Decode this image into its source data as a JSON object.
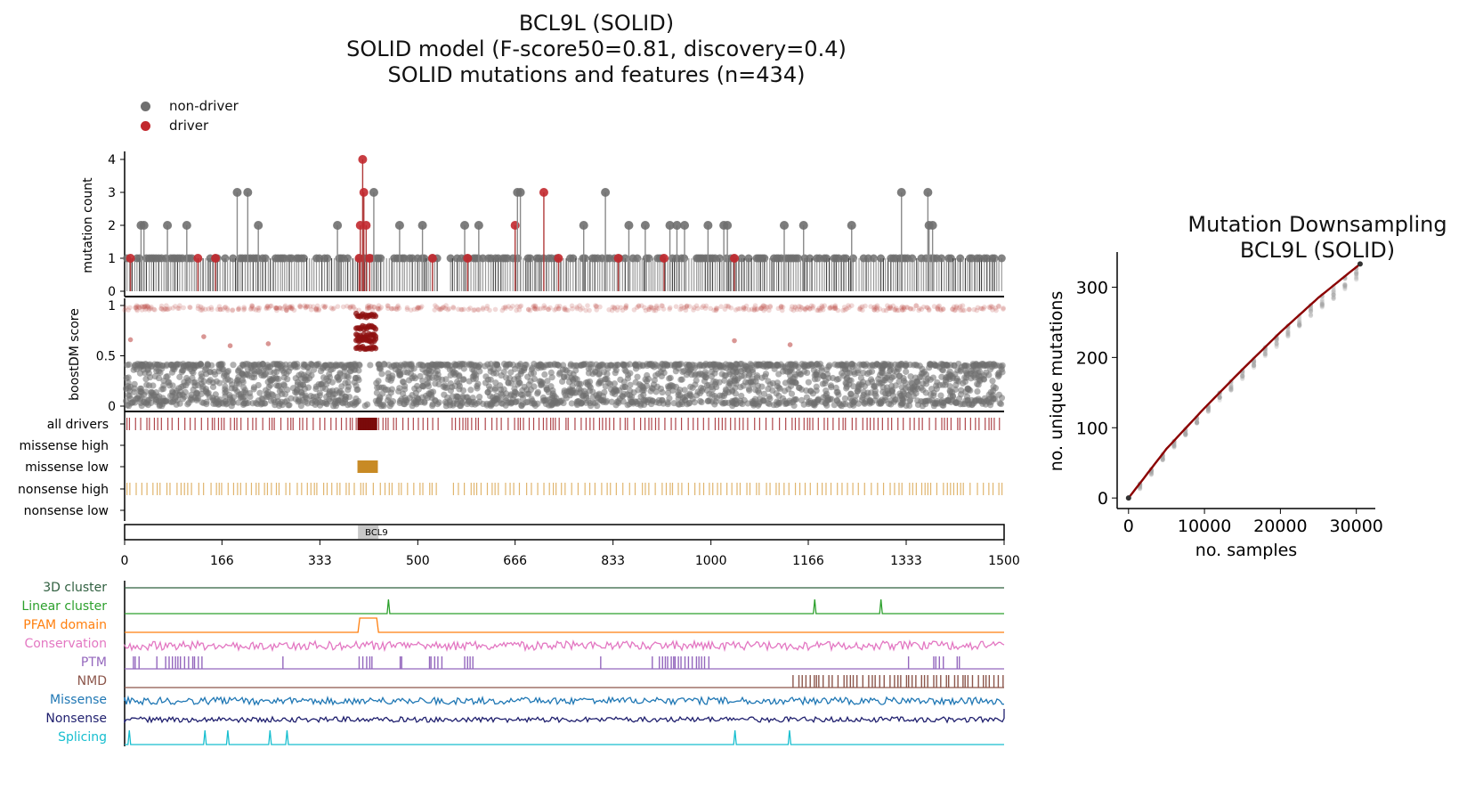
{
  "header": {
    "title_line1": "BCL9L (SOLID)",
    "title_line2": "SOLID model (F-score50=0.81, discovery=0.4)",
    "title_line3": "SOLID mutations and features (n=434)"
  },
  "legend": {
    "items": [
      {
        "label": "non-driver",
        "color": "#6f6f6f"
      },
      {
        "label": "driver",
        "color": "#c2282d"
      }
    ]
  },
  "chart_data": [
    {
      "type": "scatter",
      "name": "lollipop",
      "ylabel": "mutation count",
      "ylim": [
        0,
        4
      ],
      "yticks": [
        "0",
        "1",
        "2",
        "3",
        "4"
      ],
      "xlim": [
        0,
        1500
      ],
      "baseline_count": 1,
      "stems": [
        {
          "x": 10,
          "count": 1,
          "driver": true
        },
        {
          "x": 28,
          "count": 2,
          "driver": false
        },
        {
          "x": 33,
          "count": 2,
          "driver": false
        },
        {
          "x": 73,
          "count": 2,
          "driver": false
        },
        {
          "x": 106,
          "count": 2,
          "driver": false
        },
        {
          "x": 125,
          "count": 1,
          "driver": true
        },
        {
          "x": 155,
          "count": 1,
          "driver": true
        },
        {
          "x": 192,
          "count": 3,
          "driver": false
        },
        {
          "x": 210,
          "count": 3,
          "driver": false
        },
        {
          "x": 228,
          "count": 2,
          "driver": false
        },
        {
          "x": 363,
          "count": 2,
          "driver": false
        },
        {
          "x": 400,
          "count": 1,
          "driver": true
        },
        {
          "x": 402,
          "count": 2,
          "driver": true
        },
        {
          "x": 406,
          "count": 4,
          "driver": true
        },
        {
          "x": 408,
          "count": 3,
          "driver": true
        },
        {
          "x": 412,
          "count": 2,
          "driver": true
        },
        {
          "x": 418,
          "count": 1,
          "driver": true
        },
        {
          "x": 425,
          "count": 3,
          "driver": false
        },
        {
          "x": 469,
          "count": 2,
          "driver": false
        },
        {
          "x": 508,
          "count": 2,
          "driver": false
        },
        {
          "x": 525,
          "count": 1,
          "driver": true
        },
        {
          "x": 580,
          "count": 2,
          "driver": false
        },
        {
          "x": 585,
          "count": 1,
          "driver": true
        },
        {
          "x": 604,
          "count": 2,
          "driver": false
        },
        {
          "x": 666,
          "count": 2,
          "driver": true
        },
        {
          "x": 670,
          "count": 3,
          "driver": false
        },
        {
          "x": 675,
          "count": 3,
          "driver": false
        },
        {
          "x": 715,
          "count": 3,
          "driver": true
        },
        {
          "x": 740,
          "count": 1,
          "driver": true
        },
        {
          "x": 783,
          "count": 2,
          "driver": false
        },
        {
          "x": 820,
          "count": 3,
          "driver": false
        },
        {
          "x": 842,
          "count": 1,
          "driver": true
        },
        {
          "x": 860,
          "count": 2,
          "driver": false
        },
        {
          "x": 888,
          "count": 2,
          "driver": false
        },
        {
          "x": 920,
          "count": 1,
          "driver": true
        },
        {
          "x": 930,
          "count": 2,
          "driver": false
        },
        {
          "x": 942,
          "count": 2,
          "driver": false
        },
        {
          "x": 955,
          "count": 2,
          "driver": false
        },
        {
          "x": 995,
          "count": 2,
          "driver": false
        },
        {
          "x": 1022,
          "count": 2,
          "driver": false
        },
        {
          "x": 1028,
          "count": 2,
          "driver": false
        },
        {
          "x": 1040,
          "count": 1,
          "driver": true
        },
        {
          "x": 1125,
          "count": 2,
          "driver": false
        },
        {
          "x": 1158,
          "count": 2,
          "driver": false
        },
        {
          "x": 1240,
          "count": 2,
          "driver": false
        },
        {
          "x": 1325,
          "count": 3,
          "driver": false
        },
        {
          "x": 1370,
          "count": 3,
          "driver": false
        },
        {
          "x": 1372,
          "count": 2,
          "driver": false
        },
        {
          "x": 1378,
          "count": 2,
          "driver": false
        }
      ]
    },
    {
      "type": "scatter",
      "name": "boostdm-score",
      "ylabel": "boostDM score",
      "ylim": [
        0,
        1
      ],
      "yticks": [
        "0",
        "0.5",
        "1"
      ],
      "xlim": [
        0,
        1500
      ],
      "high_driver_cluster": {
        "x_range": [
          395,
          430
        ],
        "y_values": [
          0.9,
          0.78,
          0.7,
          0.65,
          0.58
        ]
      },
      "isolated_drivers": [
        {
          "x": 10,
          "y": 0.66
        },
        {
          "x": 135,
          "y": 0.69
        },
        {
          "x": 180,
          "y": 0.6
        },
        {
          "x": 245,
          "y": 0.62
        },
        {
          "x": 1040,
          "y": 0.65
        },
        {
          "x": 1135,
          "y": 0.61
        }
      ],
      "nondriver_band": [
        0.0,
        0.42
      ],
      "driver_band": [
        0.95,
        1.0
      ]
    },
    {
      "type": "table",
      "name": "consequence-tracks",
      "rows": [
        {
          "label": "all drivers",
          "color": "#a0262b"
        },
        {
          "label": "missense high",
          "color": "#c88a25"
        },
        {
          "label": "missense low",
          "color": "#c88a25"
        },
        {
          "label": "nonsense high",
          "color": "#d8a24a"
        },
        {
          "label": "nonsense low",
          "color": "#d8a24a"
        }
      ],
      "domain_label": "BCL9",
      "domain_range": [
        398,
        433
      ],
      "xlim": [
        0,
        1500
      ],
      "xticks": [
        0,
        166,
        333,
        500,
        666,
        833,
        1000,
        1166,
        1333,
        1500
      ]
    },
    {
      "type": "line",
      "name": "feature-tracks",
      "xlim": [
        0,
        1500
      ],
      "tracks": [
        {
          "label": "3D cluster",
          "color": "#2f5f3f",
          "kind": "flat"
        },
        {
          "label": "Linear cluster",
          "color": "#2ca02c",
          "kind": "spikes",
          "positions": [
            450,
            1177,
            1290
          ]
        },
        {
          "label": "PFAM domain",
          "color": "#ff7f0e",
          "kind": "box",
          "range": [
            398,
            433
          ]
        },
        {
          "label": "Conservation",
          "color": "#e377c2",
          "kind": "noise"
        },
        {
          "label": "PTM",
          "color": "#9467bd",
          "kind": "bars"
        },
        {
          "label": "NMD",
          "color": "#8c564b",
          "kind": "bars",
          "range": [
            1140,
            1500
          ]
        },
        {
          "label": "Missense",
          "color": "#1f77b4",
          "kind": "noise"
        },
        {
          "label": "Nonsense",
          "color": "#1f1f6e",
          "kind": "noise"
        },
        {
          "label": "Splicing",
          "color": "#17becf",
          "kind": "spikes",
          "positions": [
            8,
            137,
            176,
            248,
            277,
            1041,
            1134
          ]
        }
      ]
    },
    {
      "type": "scatter",
      "name": "downsampling",
      "title_line1": "Mutation Downsampling",
      "title_line2": "BCL9L (SOLID)",
      "xlabel": "no. samples",
      "ylabel": "no. unique mutations",
      "xlim": [
        -1500,
        32500
      ],
      "ylim": [
        -15,
        350
      ],
      "xticks": [
        0,
        10000,
        20000,
        30000
      ],
      "yticks": [
        0,
        100,
        200,
        300
      ],
      "mean_curve": {
        "x": [
          0,
          5000,
          10000,
          15000,
          20000,
          25000,
          30500
        ],
        "y": [
          0,
          70,
          128,
          183,
          236,
          285,
          333
        ]
      },
      "line_color": "#8b0000"
    }
  ]
}
